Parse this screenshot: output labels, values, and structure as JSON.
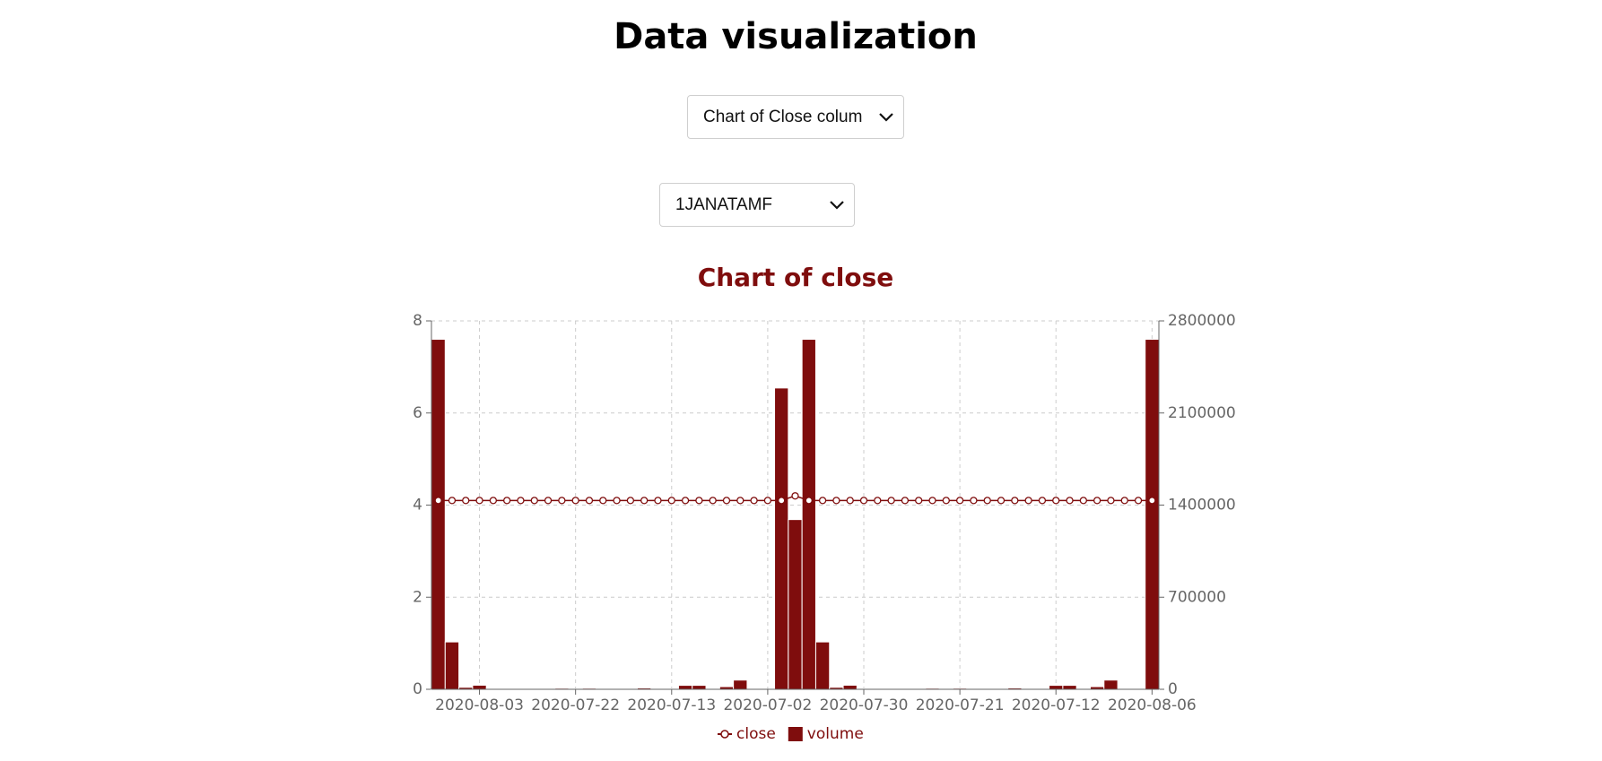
{
  "header": {
    "title": "Data visualization"
  },
  "controls": {
    "chart_select": "Chart of Close colum",
    "symbol_select": "1JANATAMF"
  },
  "chart_data": {
    "type": "composed",
    "title": "Chart of close",
    "categories": [
      null,
      null,
      null,
      "2020-08-03",
      null,
      null,
      null,
      null,
      null,
      null,
      "2020-07-22",
      null,
      null,
      null,
      null,
      null,
      null,
      "2020-07-13",
      null,
      null,
      null,
      null,
      null,
      null,
      "2020-07-02",
      null,
      null,
      null,
      null,
      null,
      null,
      "2020-07-30",
      null,
      null,
      null,
      null,
      null,
      null,
      "2020-07-21",
      null,
      null,
      null,
      null,
      null,
      null,
      "2020-07-12",
      null,
      null,
      null,
      null,
      null,
      null,
      "2020-08-06"
    ],
    "series": [
      {
        "name": "close",
        "type": "line",
        "color": "#7f0d0d",
        "values": [
          4.1,
          4.1,
          4.1,
          4.1,
          4.1,
          4.1,
          4.1,
          4.1,
          4.1,
          4.1,
          4.1,
          4.1,
          4.1,
          4.1,
          4.1,
          4.1,
          4.1,
          4.1,
          4.1,
          4.1,
          4.1,
          4.1,
          4.1,
          4.1,
          4.1,
          4.1,
          4.2,
          4.1,
          4.1,
          4.1,
          4.1,
          4.1,
          4.1,
          4.1,
          4.1,
          4.1,
          4.1,
          4.1,
          4.1,
          4.1,
          4.1,
          4.1,
          4.1,
          4.1,
          4.1,
          4.1,
          4.1,
          4.1,
          4.1,
          4.1,
          4.1,
          4.1,
          4.1
        ]
      },
      {
        "name": "volume",
        "type": "bar",
        "axis": "y2",
        "color": "#7f0d0d",
        "values": [
          2660000,
          360000,
          15000,
          31000,
          5000,
          3000,
          2000,
          2000,
          3000,
          8000,
          3000,
          8000,
          2000,
          2000,
          3000,
          10000,
          3000,
          5000,
          30000,
          30000,
          3000,
          20000,
          70000,
          0,
          0,
          2290000,
          1290000,
          2660000,
          360000,
          15000,
          31000,
          5000,
          3000,
          2000,
          2000,
          3000,
          8000,
          3000,
          8000,
          2000,
          2000,
          3000,
          10000,
          3000,
          5000,
          30000,
          30000,
          3000,
          20000,
          70000,
          0,
          0,
          2660000
        ]
      }
    ],
    "ylim": [
      0,
      8
    ],
    "yticks": [
      0,
      2,
      4,
      6,
      8
    ],
    "y2lim": [
      0,
      2800000
    ],
    "y2ticks": [
      0,
      700000,
      1400000,
      2100000,
      2800000
    ],
    "grid": true
  }
}
